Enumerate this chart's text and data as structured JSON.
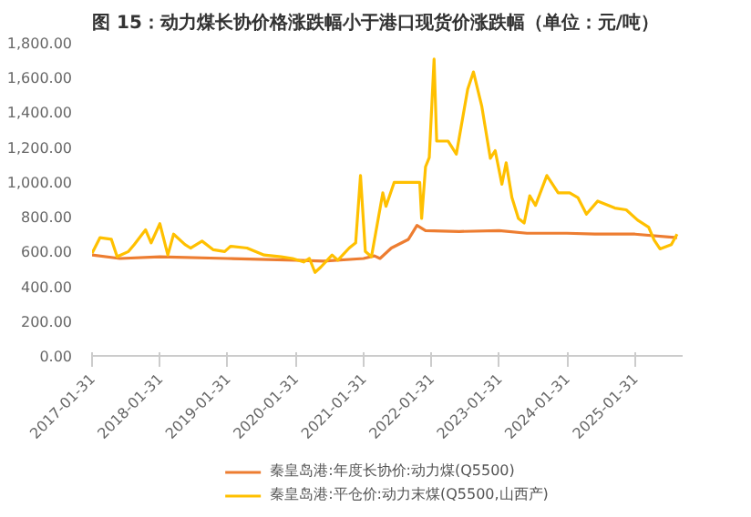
{
  "chart_data": {
    "type": "line",
    "title": "图 15：动力煤长协价格涨跌幅小于港口现货价涨跌幅（单位：元/吨）",
    "xlim": [
      "2017-01-31",
      "2025-10-15"
    ],
    "xticks": [
      "2017-01-31",
      "2018-01-31",
      "2019-01-31",
      "2020-01-31",
      "2021-01-31",
      "2022-01-31",
      "2023-01-31",
      "2024-01-31",
      "2025-01-31"
    ],
    "ylim": [
      0,
      1800
    ],
    "yticks": [
      {
        "value": 0,
        "label": "0.00"
      },
      {
        "value": 200,
        "label": "200.00"
      },
      {
        "value": 400,
        "label": "400.00"
      },
      {
        "value": 600,
        "label": "600.00"
      },
      {
        "value": 800,
        "label": "800.00"
      },
      {
        "value": 1000,
        "label": "1,000.00"
      },
      {
        "value": 1200,
        "label": "1,200.00"
      },
      {
        "value": 1400,
        "label": "1,400.00"
      },
      {
        "value": 1600,
        "label": "1,600.00"
      },
      {
        "value": 1800,
        "label": "1,800.00"
      }
    ],
    "grid": false,
    "legend": "bottom",
    "line_style": "solid",
    "marker": "none",
    "series": [
      {
        "name": "秦皇岛港:年度长协价:动力煤(Q5500)",
        "color": "#ed7d31",
        "x": [
          "2017-01-31",
          "2017-06-30",
          "2018-01-31",
          "2019-01-31",
          "2020-01-31",
          "2020-06-30",
          "2021-01-31",
          "2021-03-31",
          "2021-04-30",
          "2021-06-30",
          "2021-09-30",
          "2021-11-15",
          "2021-12-31",
          "2022-06-30",
          "2023-01-31",
          "2023-06-30",
          "2024-01-31",
          "2024-06-30",
          "2025-01-31",
          "2025-09-15"
        ],
        "values": [
          580,
          560,
          570,
          560,
          550,
          545,
          560,
          575,
          560,
          620,
          670,
          750,
          720,
          715,
          720,
          705,
          705,
          700,
          700,
          680
        ]
      },
      {
        "name": "秦皇岛港:平仓价:动力末煤(Q5500,山西产)",
        "color": "#ffc000",
        "x": [
          "2017-01-31",
          "2017-03-15",
          "2017-05-15",
          "2017-06-15",
          "2017-08-15",
          "2017-09-15",
          "2017-11-15",
          "2017-12-15",
          "2018-01-31",
          "2018-03-15",
          "2018-04-15",
          "2018-06-15",
          "2018-07-15",
          "2018-09-15",
          "2018-11-15",
          "2019-01-15",
          "2019-02-15",
          "2019-05-15",
          "2019-08-15",
          "2019-11-15",
          "2020-01-15",
          "2020-03-15",
          "2020-04-15",
          "2020-05-15",
          "2020-06-15",
          "2020-08-15",
          "2020-09-15",
          "2020-11-15",
          "2020-12-20",
          "2021-01-15",
          "2021-02-10",
          "2021-03-15",
          "2021-05-15",
          "2021-06-01",
          "2021-07-15",
          "2021-11-30",
          "2021-12-10",
          "2021-12-31",
          "2022-01-20",
          "2022-02-15",
          "2022-03-01",
          "2022-05-01",
          "2022-06-15",
          "2022-08-15",
          "2022-09-15",
          "2022-10-30",
          "2022-12-15",
          "2023-01-10",
          "2023-02-15",
          "2023-03-10",
          "2023-04-10",
          "2023-05-15",
          "2023-06-15",
          "2023-07-15",
          "2023-08-15",
          "2023-10-15",
          "2023-12-15",
          "2024-02-15",
          "2024-03-30",
          "2024-05-15",
          "2024-07-15",
          "2024-10-15",
          "2024-12-15",
          "2025-02-15",
          "2025-04-15",
          "2025-05-15",
          "2025-06-15",
          "2025-08-15",
          "2025-09-15"
        ],
        "values": [
          590,
          680,
          670,
          570,
          600,
          640,
          725,
          650,
          760,
          580,
          700,
          640,
          620,
          660,
          610,
          600,
          630,
          620,
          580,
          570,
          560,
          540,
          560,
          480,
          510,
          580,
          550,
          620,
          650,
          1037,
          600,
          570,
          937,
          860,
          997,
          997,
          790,
          1087,
          1140,
          1706,
          1235,
          1235,
          1160,
          1533,
          1632,
          1434,
          1136,
          1180,
          987,
          1110,
          910,
          790,
          764,
          920,
          865,
          1037,
          937,
          937,
          910,
          815,
          890,
          850,
          840,
          780,
          740,
          665,
          615,
          640,
          700
        ]
      }
    ]
  }
}
